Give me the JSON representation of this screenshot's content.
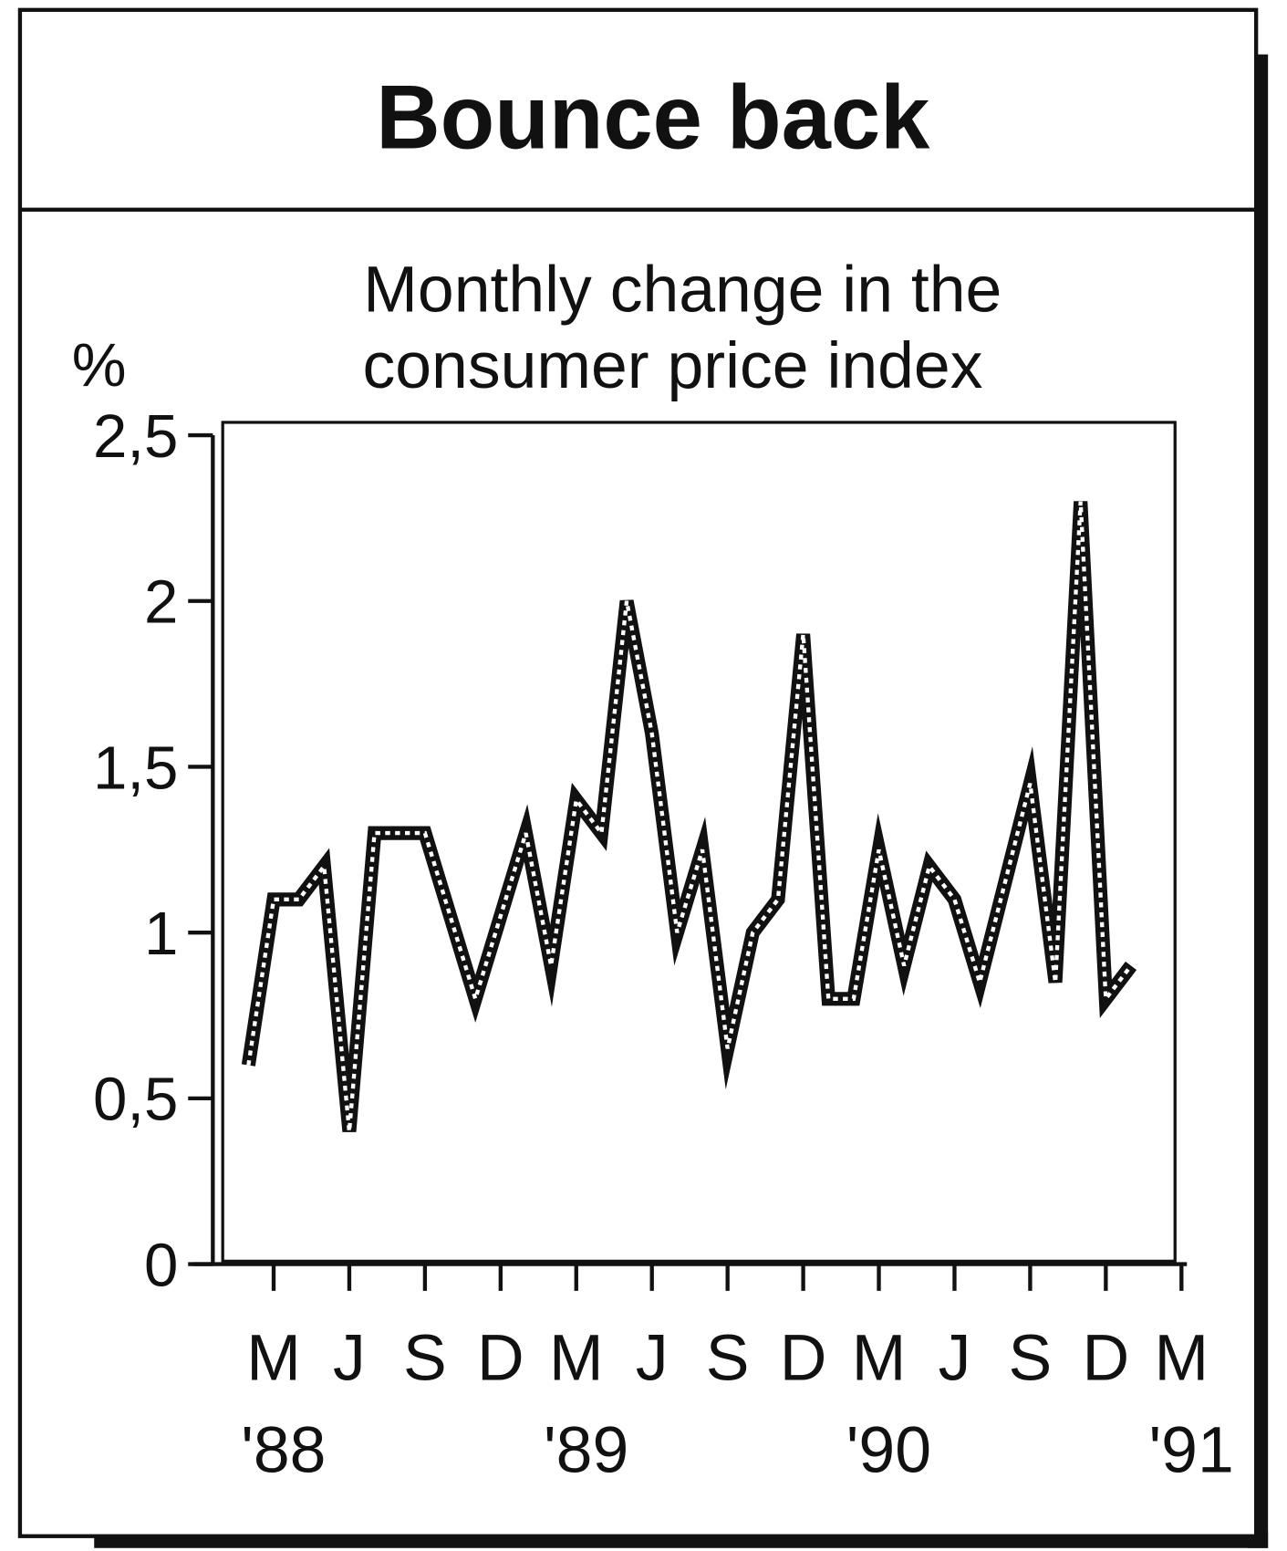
{
  "chart_data": {
    "type": "line",
    "title": "Bounce back",
    "subtitle": [
      "Monthly change in the",
      "consumer price index"
    ],
    "y_label": "%",
    "categories": [
      null,
      "M",
      null,
      null,
      "J",
      null,
      null,
      "S",
      null,
      null,
      "D",
      null,
      null,
      "M",
      null,
      null,
      "J",
      null,
      null,
      "S",
      null,
      null,
      "D",
      null,
      null,
      "M",
      null,
      null,
      "J",
      null,
      null,
      "S",
      null,
      null,
      "D",
      null,
      null,
      "M"
    ],
    "category_years": [
      null,
      "'88",
      null,
      null,
      null,
      null,
      null,
      null,
      null,
      null,
      null,
      null,
      null,
      "'89",
      null,
      null,
      null,
      null,
      null,
      null,
      null,
      null,
      null,
      null,
      null,
      "'90",
      null,
      null,
      null,
      null,
      null,
      null,
      null,
      null,
      null,
      null,
      null,
      "'91"
    ],
    "series": [
      {
        "color": "#111111",
        "values": [
          0.6,
          1.1,
          1.1,
          1.2,
          0.4,
          1.3,
          1.3,
          1.3,
          1.05,
          0.8,
          1.05,
          1.3,
          0.9,
          1.4,
          1.3,
          2.0,
          1.6,
          1.0,
          1.25,
          0.65,
          1.0,
          1.1,
          1.9,
          0.8,
          0.8,
          1.25,
          0.9,
          1.2,
          1.1,
          0.85,
          1.15,
          1.45,
          0.85,
          2.3,
          0.8,
          0.9,
          null,
          null
        ]
      }
    ],
    "ylim": [
      0,
      2.5
    ],
    "yticks": [
      0,
      {
        "value": 0.5,
        "label": "0,5"
      },
      1,
      {
        "value": 1.5,
        "label": "1,5"
      },
      2,
      {
        "value": 2.5,
        "label": "2,5"
      }
    ]
  }
}
